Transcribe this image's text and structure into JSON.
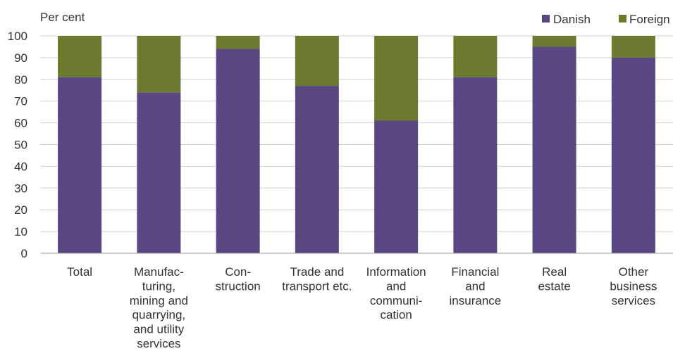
{
  "chart_data": {
    "type": "bar",
    "stacked": true,
    "unit_label": "Per cent",
    "categories": [
      [
        "Total"
      ],
      [
        "Manufac-",
        "turing,",
        "mining and",
        "quarrying,",
        "and utility",
        "services"
      ],
      [
        "Con-",
        "struction"
      ],
      [
        "Trade and",
        "transport etc."
      ],
      [
        "Information",
        "and",
        "communi-",
        "cation"
      ],
      [
        "Financial",
        "and",
        "insurance"
      ],
      [
        "Real",
        "estate"
      ],
      [
        "Other",
        "business",
        "services"
      ]
    ],
    "series": [
      {
        "name": "Danish",
        "color": "#5a4683",
        "values": [
          81,
          74,
          94,
          77,
          61,
          81,
          95,
          90
        ]
      },
      {
        "name": "Foreign",
        "color": "#6b7a2f",
        "values": [
          19,
          26,
          6,
          23,
          39,
          19,
          5,
          10
        ]
      }
    ],
    "ylim": [
      0,
      100
    ],
    "yticks": [
      0,
      10,
      20,
      30,
      40,
      50,
      60,
      70,
      80,
      90,
      100
    ],
    "grid": true,
    "legend_position": "top-right"
  }
}
